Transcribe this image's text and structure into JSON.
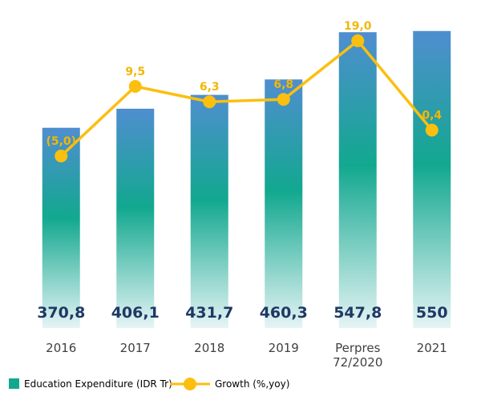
{
  "chart_data": {
    "type": "bar",
    "title": "",
    "xlabel": "",
    "ylabel": "",
    "categories": [
      [
        "2016"
      ],
      [
        "2017"
      ],
      [
        "2018"
      ],
      [
        "2019"
      ],
      [
        "Perpres",
        "72/2020"
      ],
      [
        "2021"
      ]
    ],
    "series": [
      {
        "name": "Education Expenditure (IDR Tr)",
        "type": "bar",
        "values": [
          370.8,
          406.1,
          431.7,
          460.3,
          547.8,
          550
        ],
        "labels": [
          "370,8",
          "406,1",
          "431,7",
          "460,3",
          "547,8",
          "550"
        ],
        "color": "#1aa595"
      },
      {
        "name": "Growth (%,yoy)",
        "type": "line",
        "values": [
          -5.0,
          9.5,
          6.3,
          6.8,
          19.0,
          0.4
        ],
        "labels": [
          "(5,0)",
          "9,5",
          "6,3",
          "6,8",
          "19,0",
          "0,4"
        ],
        "color": "#fbbf0f"
      }
    ],
    "bar_axis_range": [
      0,
      600
    ],
    "line_axis_range": [
      -30,
      25
    ],
    "grid": false,
    "legend_position": "bottom-left"
  },
  "colors": {
    "bar_top": "#4f8ed0",
    "bar_mid": "#12a88f",
    "bar_bottom": "#e6f4f5",
    "line": "#fbbf0f",
    "bar_label": "#1f3864",
    "growth_label": "#f2b705"
  }
}
